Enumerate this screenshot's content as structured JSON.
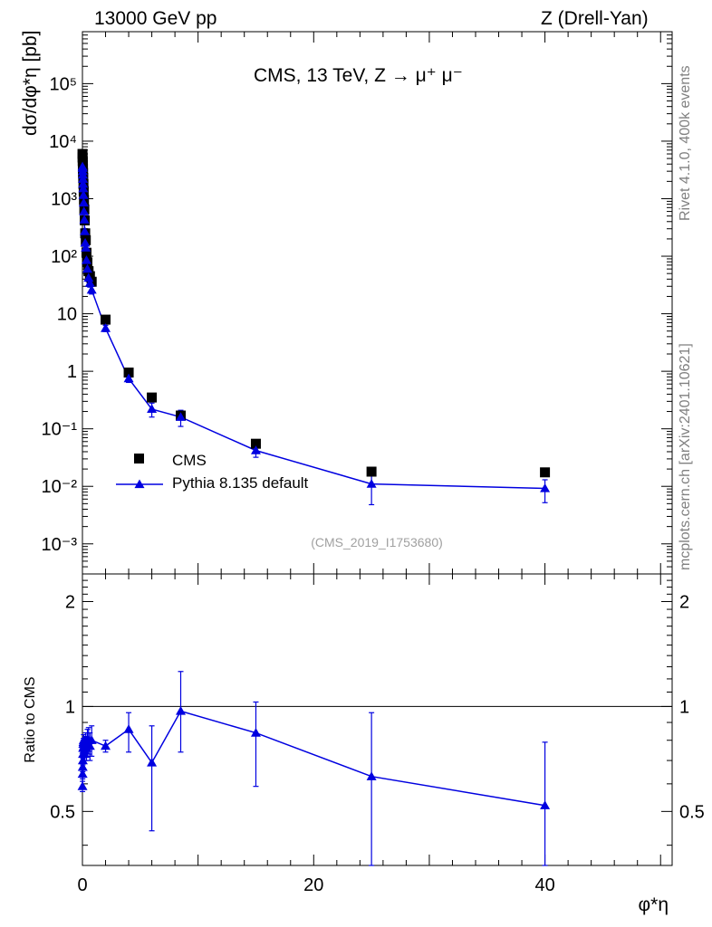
{
  "header": {
    "left": "13000 GeV pp",
    "right": "Z (Drell-Yan)"
  },
  "side_labels": {
    "rivet": "Rivet 4.1.0,  400k events",
    "mcplots": "mcplots.cern.ch [arXiv:2401.10621]"
  },
  "chart_data": [
    {
      "type": "scatter",
      "panel": "main",
      "title": "CMS, 13 TeV, Z",
      "title_suffix": "μ⁺ μ⁻",
      "ylabel": "dσ/dφ*η [pb]",
      "watermark": "(CMS_2019_I1753680)",
      "xlim": [
        0,
        51
      ],
      "ylim": [
        0.0003,
        800000
      ],
      "yscale": "log",
      "ytick_labels": [
        "10⁻³",
        "10⁻²",
        "10⁻¹",
        "1",
        "10",
        "10²",
        "10³",
        "10⁴",
        "10⁵"
      ],
      "legend_position": "lower-left",
      "series": [
        {
          "name": "CMS",
          "color": "#000000",
          "marker": "square",
          "x": [
            0.005,
            0.015,
            0.025,
            0.035,
            0.045,
            0.055,
            0.07,
            0.09,
            0.11,
            0.135,
            0.165,
            0.2,
            0.24,
            0.29,
            0.35,
            0.43,
            0.53,
            0.65,
            0.8,
            2.0,
            4.0,
            6.0,
            8.5,
            15.0,
            25.0,
            40.0
          ],
          "y": [
            6000,
            5200,
            4500,
            3900,
            3300,
            2800,
            2300,
            1800,
            1350,
            950,
            650,
            420,
            250,
            190,
            115,
            78,
            55,
            45,
            36,
            7.9,
            0.95,
            0.35,
            0.17,
            0.055,
            0.018,
            0.0175
          ]
        },
        {
          "name": "Pythia 8.135 default",
          "color": "#0000e0",
          "marker": "triangle",
          "line": true,
          "x": [
            0.005,
            0.015,
            0.025,
            0.035,
            0.045,
            0.055,
            0.07,
            0.09,
            0.11,
            0.135,
            0.165,
            0.2,
            0.24,
            0.29,
            0.35,
            0.43,
            0.53,
            0.65,
            0.8,
            2.0,
            4.0,
            6.0,
            8.5,
            15.0,
            25.0,
            40.0
          ],
          "y": [
            3600,
            3400,
            3000,
            2600,
            2200,
            1800,
            1500,
            1150,
            850,
            600,
            430,
            270,
            170,
            140,
            85,
            60,
            42,
            34,
            26,
            5.6,
            0.75,
            0.22,
            0.16,
            0.042,
            0.011,
            0.0092
          ],
          "yerr_lo": [
            3300,
            3100,
            2750,
            2380,
            2000,
            1640,
            1360,
            1040,
            770,
            540,
            385,
            240,
            150,
            122,
            74,
            52,
            36,
            29,
            22,
            4.9,
            0.64,
            0.16,
            0.11,
            0.032,
            0.0048,
            0.0052
          ],
          "yerr_hi": [
            3900,
            3700,
            3250,
            2820,
            2400,
            1960,
            1640,
            1260,
            930,
            660,
            475,
            300,
            190,
            158,
            96,
            68,
            48,
            39,
            30,
            6.3,
            0.86,
            0.28,
            0.21,
            0.052,
            0.017,
            0.013
          ]
        }
      ]
    },
    {
      "type": "line",
      "panel": "ratio",
      "ylabel": "Ratio to CMS",
      "xlabel": "φ*η",
      "xlim": [
        0,
        51
      ],
      "ylim": [
        0.35,
        2.4
      ],
      "yscale": "log",
      "xticks": [
        0,
        20,
        40
      ],
      "yticks": [
        0.5,
        1,
        2
      ],
      "reference_line": 1,
      "series": [
        {
          "name": "Pythia 8.135 default",
          "color": "#0000e0",
          "x": [
            0.005,
            0.015,
            0.025,
            0.035,
            0.045,
            0.055,
            0.07,
            0.09,
            0.11,
            0.135,
            0.165,
            0.2,
            0.24,
            0.29,
            0.35,
            0.43,
            0.53,
            0.65,
            0.8,
            2.0,
            4.0,
            6.0,
            8.5,
            15.0,
            25.0,
            40.0
          ],
          "y": [
            0.59,
            0.64,
            0.67,
            0.7,
            0.73,
            0.76,
            0.78,
            0.79,
            0.8,
            0.77,
            0.75,
            0.73,
            0.78,
            0.8,
            0.76,
            0.79,
            0.8,
            0.77,
            0.8,
            0.77,
            0.86,
            0.69,
            0.97,
            0.84,
            0.63,
            0.52
          ],
          "yerr_lo": [
            0.57,
            0.62,
            0.65,
            0.68,
            0.71,
            0.74,
            0.76,
            0.77,
            0.77,
            0.74,
            0.72,
            0.7,
            0.74,
            0.76,
            0.7,
            0.72,
            0.73,
            0.7,
            0.72,
            0.74,
            0.74,
            0.44,
            0.74,
            0.59,
            0.35,
            0.35
          ],
          "yerr_hi": [
            0.61,
            0.66,
            0.69,
            0.72,
            0.75,
            0.78,
            0.8,
            0.81,
            0.83,
            0.8,
            0.78,
            0.76,
            0.82,
            0.84,
            0.82,
            0.86,
            0.87,
            0.84,
            0.88,
            0.8,
            0.96,
            0.88,
            1.26,
            1.03,
            0.96,
            0.79
          ]
        }
      ]
    }
  ]
}
